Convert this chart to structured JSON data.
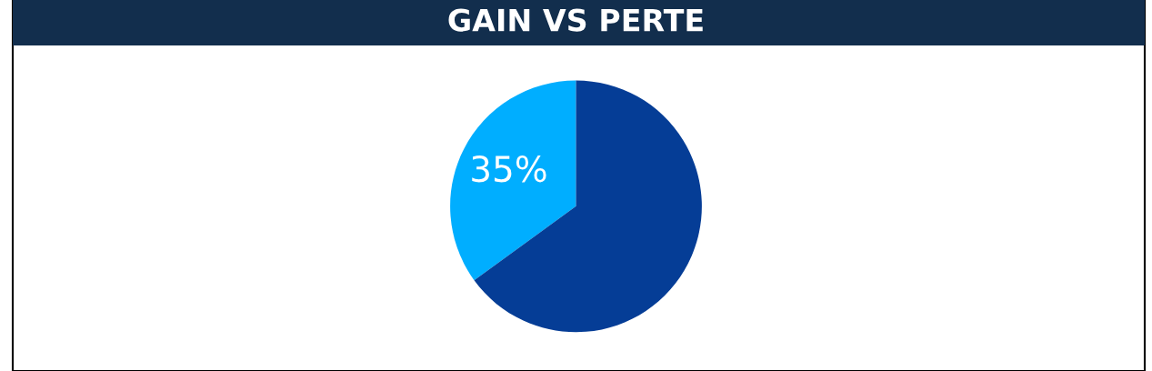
{
  "chart_data": {
    "type": "pie",
    "title": "GAIN VS PERTE",
    "categories": [
      null,
      null
    ],
    "values": [
      35,
      65
    ],
    "colors": [
      "#00aeff",
      "#053d96"
    ],
    "value_labels": [
      "35%",
      null
    ]
  }
}
